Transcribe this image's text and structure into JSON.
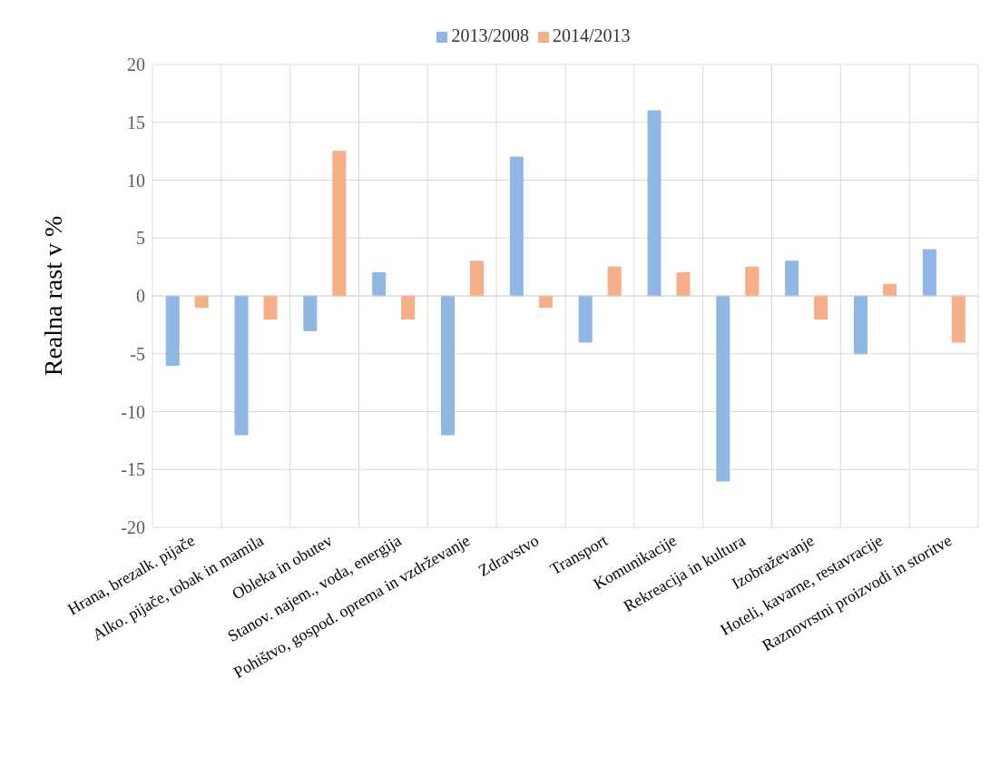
{
  "chart_data": {
    "type": "bar",
    "ylabel": "Realna rast v %",
    "categories": [
      "Hrana, brezalk. pijače",
      "Alko. pijače, tobak in mamila",
      "Obleka in obutev",
      "Stanov. najem., voda, energija",
      "Pohištvo, gospod. oprema in vzdrževanje",
      "Zdravstvo",
      "Transport",
      "Komunikacije",
      "Rekreacija in kultura",
      "Izobraževanje",
      "Hoteli, kavarne, restavracije",
      "Raznovrstni proizvodi in storitve"
    ],
    "series": [
      {
        "name": "2013/2008",
        "color": "#8fb7e3",
        "values": [
          -6,
          -12,
          -3,
          2,
          -12,
          12,
          -4,
          16,
          -16,
          3,
          -5,
          4
        ]
      },
      {
        "name": "2014/2013",
        "color": "#f5ae88",
        "values": [
          -1,
          -2,
          12.5,
          -2,
          3,
          -1,
          2.5,
          2,
          2.5,
          -2,
          1,
          -4
        ]
      }
    ],
    "ylim": [
      -20,
      20
    ],
    "yticks": [
      -20,
      -15,
      -10,
      -5,
      0,
      5,
      10,
      15,
      20
    ],
    "grid": true,
    "legend": "top"
  }
}
